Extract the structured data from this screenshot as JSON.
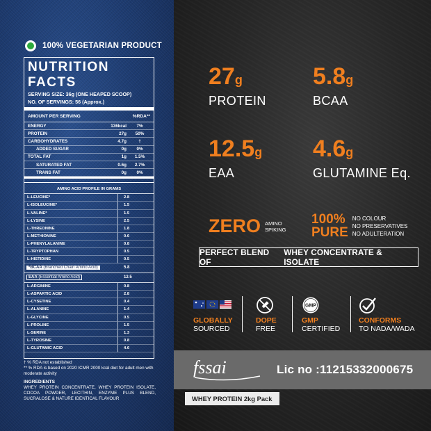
{
  "vegetarian": "100% VEGETARIAN PRODUCT",
  "nutrition": {
    "title": "NUTRITION FACTS",
    "serving_size": "SERVING SIZE: 36g (ONE HEAPED SCOOP)",
    "servings": "NO. OF SERVINGS: 56 (Approx.)",
    "head_left": "AMOUNT PER SERVING",
    "head_right": "%RDA**",
    "rows": [
      {
        "name": "ENERGY",
        "value": "136kcal",
        "rda": "7%"
      },
      {
        "name": "PROTEIN",
        "value": "27g",
        "rda": "50%"
      },
      {
        "name": "CARBOHYDRATES",
        "value": "4.7g",
        "rda": "†"
      },
      {
        "name": "ADDED SUGAR",
        "value": "0g",
        "rda": "0%"
      },
      {
        "name": "TOTAL FAT",
        "value": "1g",
        "rda": "1.5%"
      },
      {
        "name": "SATURATED FAT",
        "value": "0.6g",
        "rda": "2.7%"
      },
      {
        "name": "TRANS FAT",
        "value": "0g",
        "rda": "0%"
      }
    ]
  },
  "amino": {
    "title": "AMINO ACID PROFILE IN GRAMS",
    "bcaa_group": [
      {
        "name": "L-LEUCINE*",
        "value": "2.8"
      },
      {
        "name": "L-ISOLEUCINE*",
        "value": "1.5"
      },
      {
        "name": "L-VALINE*",
        "value": "1.5"
      },
      {
        "name": "L-LYSINE",
        "value": "2.5"
      },
      {
        "name": "L-THREONINE",
        "value": "1.8"
      },
      {
        "name": "L-METHIONINE",
        "value": "0.6"
      },
      {
        "name": "L-PHENYLALANINE",
        "value": "0.8"
      },
      {
        "name": "L-TRYPTOPHAN",
        "value": "0.5"
      },
      {
        "name": "L-HISTIDINE",
        "value": "0.5"
      }
    ],
    "bcaa_label": "*BCAA",
    "bcaa_desc": "(Branched Chain Amino Acid)",
    "bcaa_total": "5.8",
    "eaa_label": "EAA",
    "eaa_desc": "(Essential Amino Acid)",
    "eaa_total": "12.5",
    "other_group": [
      {
        "name": "L-ARGININE",
        "value": "0.8"
      },
      {
        "name": "L-ASPARTIC ACID",
        "value": "2.8"
      },
      {
        "name": "L-CYSETINE",
        "value": "0.4"
      },
      {
        "name": "L-ALANINE",
        "value": "1.4"
      },
      {
        "name": "L-GLYCINE",
        "value": "0.5"
      },
      {
        "name": "L-PROLINE",
        "value": "1.5"
      },
      {
        "name": "L-SERINE",
        "value": "1.3"
      },
      {
        "name": "L-TYROSINE",
        "value": "0.8"
      },
      {
        "name": "L-GLUTAMIC ACID",
        "value": "4.6"
      }
    ]
  },
  "footnotes": {
    "note1": "† % RDA not established",
    "note2": "** % RDA is based on 2020 ICMR 2000 kcal diet for adult men with moderate activity",
    "ingredients_title": "INGREDIENTS",
    "ingredients": "WHEY PROTEIN CONCENTRATE, WHEY PROTEIN ISOLATE, COCOA POWDER, LECITHIN, ENZYME PLUS BLEND, SUCRALOSE & NATURE IDENTICAL FLAVOUR"
  },
  "stats": [
    {
      "value": "27",
      "unit": "g",
      "label": "PROTEIN"
    },
    {
      "value": "5.8",
      "unit": "g",
      "label": "BCAA"
    },
    {
      "value": "12.5",
      "unit": "g",
      "label": "EAA"
    },
    {
      "value": "4.6",
      "unit": "g",
      "label": "GLUTAMINE Eq."
    }
  ],
  "zero": {
    "big": "ZERO",
    "line1": "AMINO",
    "line2": "SPIKING"
  },
  "pure": {
    "big1": "100%",
    "big2": "PURE",
    "line1": "NO COLOUR",
    "line2": "NO PRESERVATIVES",
    "line3": "NO ADULTERATION"
  },
  "blend": {
    "part1": "PERFECT BLEND OF",
    "part2": "WHEY CONCENTRATE & ISOLATE"
  },
  "badges": [
    {
      "title": "GLOBALLY",
      "sub": "SOURCED",
      "icon": "flags-icon"
    },
    {
      "title": "DOPE",
      "sub": "FREE",
      "icon": "no-syringe-icon"
    },
    {
      "title": "GMP",
      "sub": "CERTIFIED",
      "icon": "gmp-icon",
      "icon_text": "GMP"
    },
    {
      "title": "CONFORMS",
      "sub": "TO NADA/WADA",
      "icon": "check-shield-icon"
    }
  ],
  "fssai": {
    "logo_text": "fssai",
    "license": "Lic no :11215332000675"
  },
  "pack": "WHEY PROTEIN 2kg Pack",
  "colors": {
    "accent": "#f07f1f",
    "left_bg": "#1d3b70",
    "right_bg": "#262626"
  }
}
